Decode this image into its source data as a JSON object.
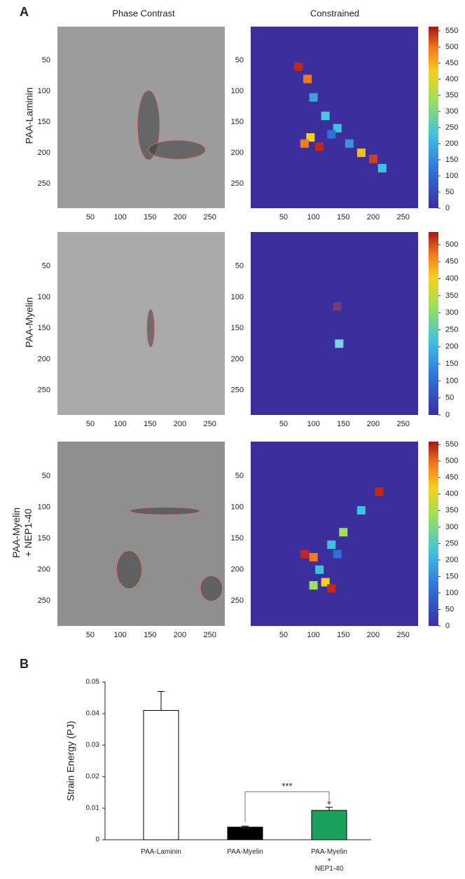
{
  "panel_a": {
    "label": "A",
    "columns": [
      "Phase Contrast",
      "Constrained"
    ],
    "xlim": [
      -5,
      275
    ],
    "ylim": [
      -5,
      290
    ],
    "rows": [
      {
        "label": "PAA-Laminin",
        "xticks": [
          50,
          100,
          150,
          200,
          250
        ],
        "yticks": [
          50,
          100,
          150,
          200,
          250
        ],
        "colorbar": {
          "lim": [
            0,
            563
          ],
          "ticks": [
            0,
            50,
            100,
            150,
            200,
            250,
            300,
            350,
            400,
            450,
            500,
            550
          ]
        }
      },
      {
        "label": "PAA-Myelin",
        "xticks": [
          50,
          100,
          150,
          200,
          250
        ],
        "yticks": [
          50,
          100,
          150,
          200,
          250
        ],
        "colorbar": {
          "lim": [
            0,
            537
          ],
          "ticks": [
            0,
            50,
            100,
            150,
            200,
            250,
            300,
            350,
            400,
            450,
            500
          ]
        }
      },
      {
        "label": "PAA-Myelin\n+ NEP1-40",
        "xticks": [
          50,
          100,
          150,
          200,
          250
        ],
        "yticks": [
          50,
          100,
          150,
          200,
          250
        ],
        "colorbar": {
          "lim": [
            0,
            559
          ],
          "ticks": [
            0,
            50,
            100,
            150,
            200,
            250,
            300,
            350,
            400,
            450,
            500,
            550
          ]
        }
      }
    ]
  },
  "chart_data": {
    "type": "bar",
    "panel_label": "B",
    "y_label": "Strain Energy (PJ)",
    "categories": [
      "PAA-Laminin",
      "PAA-Myelin",
      "PAA-Myelin\n+\nNEP1-40"
    ],
    "values": [
      0.041,
      0.004,
      0.0093
    ],
    "errors": [
      0.006,
      0.0003,
      0.001
    ],
    "colors": [
      "#ffffff",
      "#000000",
      "#1aa05a"
    ],
    "ylim": [
      0,
      0.05
    ],
    "yticks": [
      0,
      0.01,
      0.02,
      0.03,
      0.04,
      0.05
    ],
    "annotation": {
      "text": "***",
      "between": [
        1,
        2
      ]
    }
  }
}
